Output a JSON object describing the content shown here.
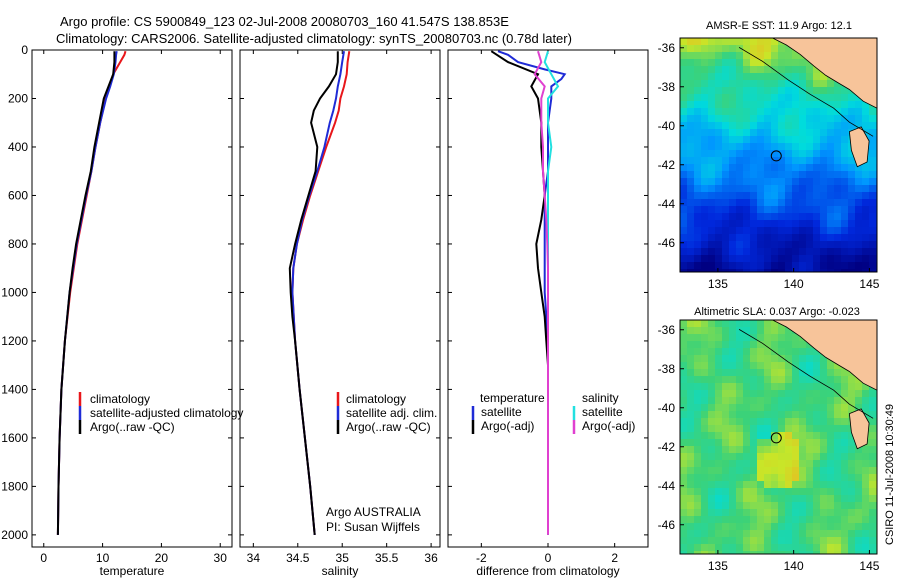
{
  "title": {
    "line1": "Argo profile: CS 5900849_123 02-Jul-2008 20080703_160 41.547S 138.853E",
    "line2": "Climatology: CARS2006. Satellite-adjusted climatology: synTS_20080703.nc (0.78d later)"
  },
  "side_stamp": "CSIRO 11-Jul-2008 10:30:49",
  "colors": {
    "climatology": "#e8161a",
    "satellite": "#1f2bd6",
    "argo": "#000000",
    "cyan": "#22e0e0",
    "magenta": "#e040d0",
    "land": "#f7c49a"
  },
  "chart_data": [
    {
      "type": "line",
      "id": "temperature",
      "xlabel": "temperature",
      "xlim": [
        -2,
        32
      ],
      "ylim": [
        2050,
        0
      ],
      "xticks": [
        0,
        10,
        20,
        30
      ],
      "yticks": [
        0,
        200,
        400,
        600,
        800,
        1000,
        1200,
        1400,
        1600,
        1800,
        2000
      ],
      "legend": [
        "climatology",
        "satellite-adjusted climatology",
        "Argo(..raw -QC)"
      ],
      "series": [
        {
          "name": "climatology",
          "color": "#e8161a",
          "depth": [
            5,
            20,
            50,
            100,
            150,
            200,
            300,
            400,
            500,
            600,
            800,
            1000,
            1200,
            1400,
            1600,
            1800,
            2000
          ],
          "values": [
            13.9,
            13.7,
            13.0,
            11.8,
            11.2,
            10.5,
            9.6,
            8.8,
            8.1,
            7.3,
            5.7,
            4.5,
            3.6,
            3.0,
            2.7,
            2.5,
            2.4
          ]
        },
        {
          "name": "satellite-adjusted climatology",
          "color": "#1f2bd6",
          "depth": [
            5,
            20,
            50,
            100,
            150,
            200,
            300,
            400,
            500,
            600,
            800,
            1000,
            1200,
            1400,
            1600,
            1800,
            2000
          ],
          "values": [
            12.4,
            12.3,
            12.2,
            11.9,
            11.3,
            10.6,
            9.6,
            8.8,
            8.1,
            7.2,
            5.6,
            4.4,
            3.6,
            3.0,
            2.7,
            2.5,
            2.4
          ]
        },
        {
          "name": "Argo(..raw -QC)",
          "color": "#000000",
          "depth": [
            5,
            20,
            50,
            100,
            150,
            200,
            300,
            400,
            500,
            600,
            700,
            800,
            900,
            1000,
            1200,
            1400,
            1600,
            1800,
            2000
          ],
          "values": [
            12.0,
            12.0,
            12.0,
            11.8,
            11.0,
            10.2,
            9.4,
            8.6,
            8.0,
            7.1,
            6.3,
            5.5,
            4.9,
            4.4,
            3.6,
            3.0,
            2.7,
            2.5,
            2.4
          ]
        }
      ]
    },
    {
      "type": "line",
      "id": "salinity",
      "xlabel": "salinity",
      "xlim": [
        33.85,
        36.1
      ],
      "ylim": [
        2050,
        0
      ],
      "xticks": [
        34,
        34.5,
        35,
        35.5,
        36
      ],
      "legend": [
        "climatology",
        "satellite adj. clim.",
        "Argo(..raw -QC)"
      ],
      "annotation": [
        "Argo AUSTRALIA",
        "PI: Susan Wijffels"
      ],
      "series": [
        {
          "name": "climatology",
          "color": "#e8161a",
          "depth": [
            5,
            50,
            100,
            150,
            200,
            250,
            300,
            400,
            500,
            600,
            700,
            800,
            900,
            1000,
            1200,
            1400,
            1600,
            1800,
            2000
          ],
          "values": [
            35.08,
            35.06,
            35.05,
            35.02,
            34.98,
            34.96,
            34.92,
            34.82,
            34.73,
            34.64,
            34.56,
            34.49,
            34.45,
            34.44,
            34.47,
            34.52,
            34.58,
            34.64,
            34.69
          ]
        },
        {
          "name": "satellite adj. clim.",
          "color": "#1f2bd6",
          "depth": [
            5,
            50,
            100,
            150,
            200,
            250,
            300,
            400,
            500,
            600,
            700,
            800,
            900,
            1000,
            1200,
            1400,
            1600,
            1800,
            2000
          ],
          "values": [
            35.02,
            35.0,
            34.98,
            34.95,
            34.93,
            34.9,
            34.86,
            34.8,
            34.72,
            34.63,
            34.55,
            34.49,
            34.45,
            34.44,
            34.47,
            34.52,
            34.58,
            34.64,
            34.69
          ]
        },
        {
          "name": "Argo(..raw -QC)",
          "color": "#000000",
          "depth": [
            5,
            50,
            100,
            150,
            200,
            250,
            300,
            400,
            500,
            600,
            700,
            800,
            900,
            1000,
            1100,
            1200,
            1400,
            1600,
            1800,
            2000
          ],
          "values": [
            34.95,
            34.95,
            34.93,
            34.85,
            34.75,
            34.68,
            34.65,
            34.72,
            34.7,
            34.62,
            34.54,
            34.47,
            34.41,
            34.42,
            34.44,
            34.47,
            34.52,
            34.58,
            34.64,
            34.69
          ]
        }
      ]
    },
    {
      "type": "line",
      "id": "difference",
      "xlabel": "difference from climatology",
      "xlim": [
        -3,
        3
      ],
      "ylim": [
        2050,
        0
      ],
      "xticks": [
        -2,
        0,
        2
      ],
      "legend_left_title": "temperature",
      "legend_right_title": "salinity",
      "legend": [
        "satellite",
        "Argo(-adj)",
        "satellite",
        "Argo(-adj)"
      ],
      "series": [
        {
          "name": "temperature satellite",
          "color": "#1f2bd6",
          "depth": [
            5,
            20,
            50,
            80,
            100,
            120,
            150,
            200,
            300,
            400,
            500,
            600,
            800,
            1000,
            1200,
            1400,
            1600,
            1800,
            2000
          ],
          "values": [
            -1.5,
            -1.2,
            -0.9,
            -0.1,
            0.5,
            0.4,
            0.1,
            0.1,
            0.0,
            0.0,
            0.0,
            -0.1,
            -0.1,
            -0.1,
            0.0,
            0.0,
            0.0,
            0.0,
            0.0
          ]
        },
        {
          "name": "temperature Argo(-adj)",
          "color": "#000000",
          "depth": [
            5,
            50,
            100,
            150,
            200,
            300,
            400,
            500,
            600,
            700,
            800,
            900,
            1000,
            1100,
            1200,
            1300,
            1400,
            1600,
            1800,
            2000
          ],
          "values": [
            -1.7,
            -1.2,
            -0.3,
            -0.5,
            -0.3,
            -0.2,
            -0.2,
            -0.15,
            -0.1,
            -0.2,
            -0.35,
            -0.3,
            -0.2,
            -0.1,
            -0.05,
            0.0,
            0.0,
            0.0,
            0.0,
            0.0
          ]
        },
        {
          "name": "salinity satellite",
          "color": "#22e0e0",
          "depth": [
            5,
            50,
            100,
            150,
            200,
            300,
            400,
            500,
            600,
            800,
            1000,
            1200,
            1400,
            1600,
            1800,
            2000
          ],
          "values": [
            0.0,
            -0.1,
            0.1,
            0.3,
            0.0,
            0.0,
            0.1,
            0.0,
            0.0,
            0.0,
            0.0,
            0.0,
            0.0,
            0.0,
            0.0,
            0.0
          ]
        },
        {
          "name": "salinity Argo(-adj)",
          "color": "#e040d0",
          "depth": [
            5,
            50,
            100,
            150,
            200,
            300,
            400,
            500,
            600,
            700,
            800,
            900,
            1000,
            1200,
            1400,
            1600,
            1800,
            2000
          ],
          "values": [
            -0.3,
            -0.2,
            -0.4,
            -0.1,
            -0.2,
            -0.2,
            -0.15,
            -0.15,
            -0.1,
            -0.05,
            -0.02,
            0.0,
            0.0,
            0.0,
            0.0,
            0.0,
            0.0,
            0.0
          ]
        }
      ]
    },
    {
      "type": "heatmap",
      "id": "sst-map",
      "title": "AMSR-E SST: 11.9 Argo: 12.1",
      "xlim": [
        132.5,
        145.5
      ],
      "ylim": [
        -47.5,
        -35.5
      ],
      "xticks": [
        135,
        140,
        145
      ],
      "yticks": [
        -36,
        -38,
        -40,
        -42,
        -44,
        -46
      ],
      "marker": {
        "lon": 138.853,
        "lat": -41.547
      }
    },
    {
      "type": "heatmap",
      "id": "sla-map",
      "title": "Altimetric SLA: 0.037 Argo: -0.023",
      "xlim": [
        132.5,
        145.5
      ],
      "ylim": [
        -47.5,
        -35.5
      ],
      "xticks": [
        135,
        140,
        145
      ],
      "yticks": [
        -36,
        -38,
        -40,
        -42,
        -44,
        -46
      ],
      "marker": {
        "lon": 138.853,
        "lat": -41.547
      }
    }
  ]
}
